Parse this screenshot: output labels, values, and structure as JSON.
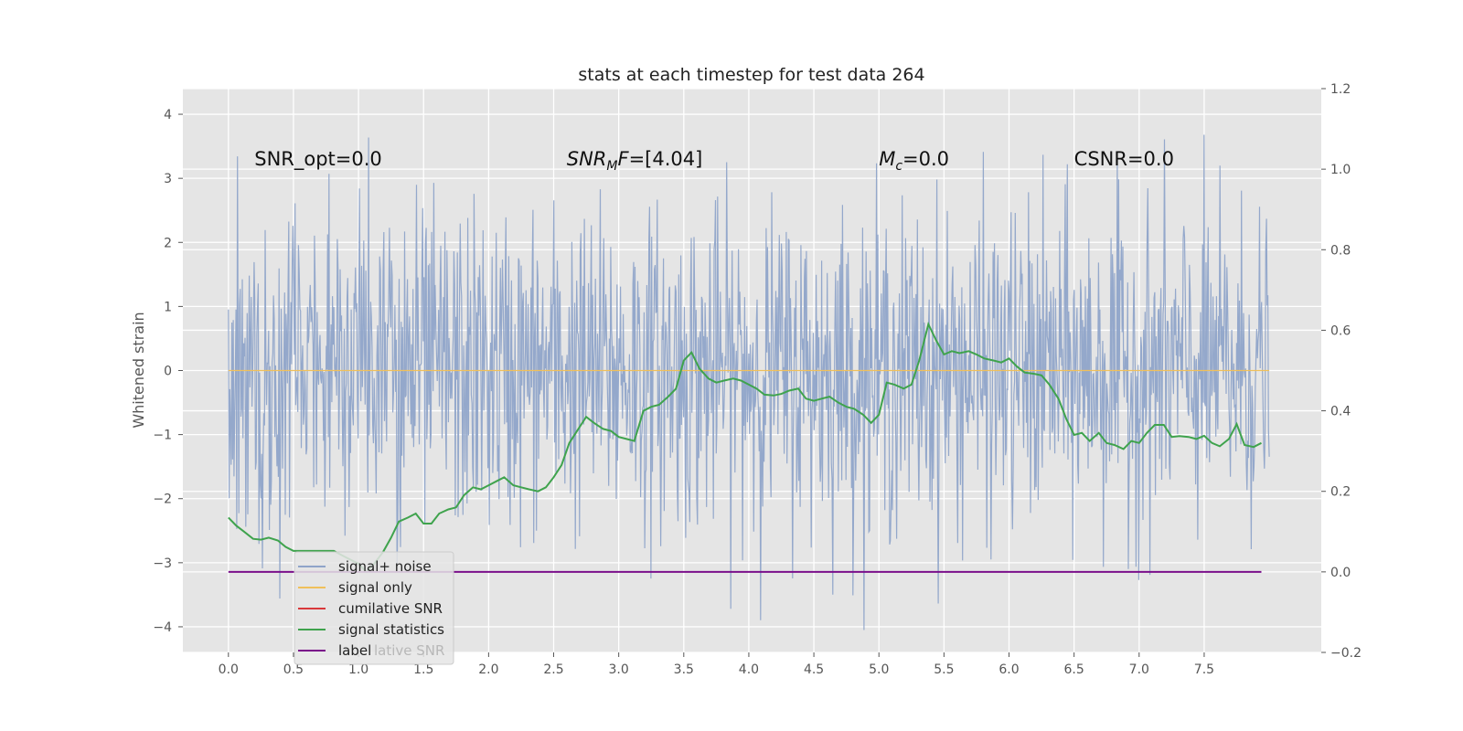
{
  "chart_data": {
    "type": "line",
    "title": "stats at each timestep for test data 264",
    "ylabel": "Whitened strain",
    "xlabel": "",
    "xlim": [
      -0.35,
      8.4
    ],
    "ylim": [
      -4.4,
      4.4
    ],
    "y2lim": [
      -0.2,
      1.2
    ],
    "grid": true,
    "xticks": [
      "0.0",
      "0.5",
      "1.0",
      "1.5",
      "2.0",
      "2.5",
      "3.0",
      "3.5",
      "4.0",
      "4.5",
      "5.0",
      "5.5",
      "6.0",
      "6.5",
      "7.0",
      "7.5"
    ],
    "yticks": [
      "−4",
      "−3",
      "−2",
      "−1",
      "0",
      "1",
      "2",
      "3",
      "4"
    ],
    "y2ticks": [
      "−0.2",
      "0.0",
      "0.2",
      "0.4",
      "0.6",
      "0.8",
      "1.0",
      "1.2"
    ],
    "annotations": [
      {
        "text": "SNR_opt=0.0",
        "x": 0.2,
        "y": 3.2
      },
      {
        "text_main": "SNR",
        "text_sub": "M",
        "text_rest": "F=[4.04]",
        "x": 2.6,
        "y": 3.2
      },
      {
        "text_main": "M",
        "text_sub": "c",
        "text_rest": "=0.0",
        "x": 5.0,
        "y": 3.2
      },
      {
        "text": "CSNR=0.0",
        "x": 6.5,
        "y": 3.2
      }
    ],
    "legend": {
      "placement": "lower-left",
      "entries": [
        {
          "label": "signal+ noise",
          "color": "#8fa4c9"
        },
        {
          "label": "signal only",
          "color": "#f0c05a"
        },
        {
          "label": "cumilative SNR",
          "color": "#d9383a"
        },
        {
          "label": "signal statistics",
          "color": "#3fa34d"
        },
        {
          "label": "label",
          "color": "#7a0f8a"
        }
      ],
      "ghost_text": "lative SNR"
    },
    "series": [
      {
        "name": "signal+ noise",
        "color": "#8fa4c9",
        "axis": "left",
        "noise": {
          "x_start": 0.0,
          "x_end": 8.0,
          "count": 1500,
          "typical_range": [
            -2.0,
            2.0
          ],
          "min": -4.05,
          "max": 4.05
        }
      },
      {
        "name": "signal only",
        "color": "#f0c05a",
        "axis": "left",
        "x": [
          0.0,
          8.0
        ],
        "y": [
          0.0,
          0.0
        ]
      },
      {
        "name": "signal statistics",
        "color": "#3fa34d",
        "axis": "right",
        "x": [
          0.0,
          0.06,
          0.12,
          0.19,
          0.25,
          0.31,
          0.38,
          0.44,
          0.5,
          0.56,
          0.62,
          0.69,
          0.75,
          0.81,
          0.88,
          0.94,
          1.0,
          1.06,
          1.12,
          1.19,
          1.25,
          1.31,
          1.38,
          1.44,
          1.5,
          1.56,
          1.62,
          1.69,
          1.75,
          1.81,
          1.88,
          1.94,
          2.0,
          2.06,
          2.12,
          2.19,
          2.25,
          2.31,
          2.38,
          2.44,
          2.5,
          2.56,
          2.62,
          2.69,
          2.75,
          2.81,
          2.88,
          2.94,
          3.0,
          3.06,
          3.12,
          3.19,
          3.25,
          3.31,
          3.38,
          3.44,
          3.5,
          3.56,
          3.62,
          3.69,
          3.75,
          3.81,
          3.88,
          3.94,
          4.0,
          4.06,
          4.12,
          4.19,
          4.25,
          4.31,
          4.38,
          4.44,
          4.5,
          4.56,
          4.62,
          4.69,
          4.75,
          4.81,
          4.88,
          4.94,
          5.0,
          5.06,
          5.12,
          5.19,
          5.25,
          5.31,
          5.38,
          5.44,
          5.5,
          5.56,
          5.62,
          5.69,
          5.75,
          5.81,
          5.88,
          5.94,
          6.0,
          6.06,
          6.12,
          6.19,
          6.25,
          6.31,
          6.38,
          6.44,
          6.5,
          6.56,
          6.62,
          6.69,
          6.75,
          6.81,
          6.88,
          6.94,
          7.0,
          7.06,
          7.12,
          7.19,
          7.25,
          7.31,
          7.38,
          7.44,
          7.5,
          7.56,
          7.62,
          7.69,
          7.75,
          7.81,
          7.88,
          7.94
        ],
        "y": [
          0.135,
          0.115,
          0.1,
          0.082,
          0.08,
          0.085,
          0.078,
          0.062,
          0.052,
          0.052,
          0.052,
          0.052,
          0.052,
          0.052,
          0.04,
          0.03,
          0.02,
          0.0,
          0.02,
          0.05,
          0.085,
          0.125,
          0.135,
          0.145,
          0.12,
          0.12,
          0.145,
          0.155,
          0.16,
          0.19,
          0.21,
          0.205,
          0.215,
          0.225,
          0.235,
          0.215,
          0.21,
          0.205,
          0.2,
          0.21,
          0.235,
          0.265,
          0.32,
          0.355,
          0.385,
          0.37,
          0.355,
          0.35,
          0.335,
          0.33,
          0.325,
          0.4,
          0.41,
          0.415,
          0.435,
          0.455,
          0.525,
          0.545,
          0.505,
          0.48,
          0.47,
          0.475,
          0.48,
          0.475,
          0.465,
          0.455,
          0.44,
          0.438,
          0.442,
          0.45,
          0.455,
          0.43,
          0.425,
          0.43,
          0.435,
          0.42,
          0.41,
          0.405,
          0.39,
          0.37,
          0.39,
          0.47,
          0.465,
          0.455,
          0.465,
          0.525,
          0.615,
          0.575,
          0.54,
          0.548,
          0.543,
          0.548,
          0.54,
          0.53,
          0.525,
          0.52,
          0.53,
          0.51,
          0.495,
          0.492,
          0.488,
          0.465,
          0.43,
          0.38,
          0.34,
          0.345,
          0.325,
          0.345,
          0.32,
          0.315,
          0.305,
          0.325,
          0.32,
          0.345,
          0.365,
          0.365,
          0.335,
          0.337,
          0.335,
          0.33,
          0.338,
          0.32,
          0.312,
          0.33,
          0.367,
          0.315,
          0.31,
          0.32
        ]
      },
      {
        "name": "label",
        "color": "#7a0f8a",
        "axis": "right",
        "x": [
          0.0,
          7.94
        ],
        "y": [
          0.0,
          0.0
        ]
      }
    ]
  }
}
